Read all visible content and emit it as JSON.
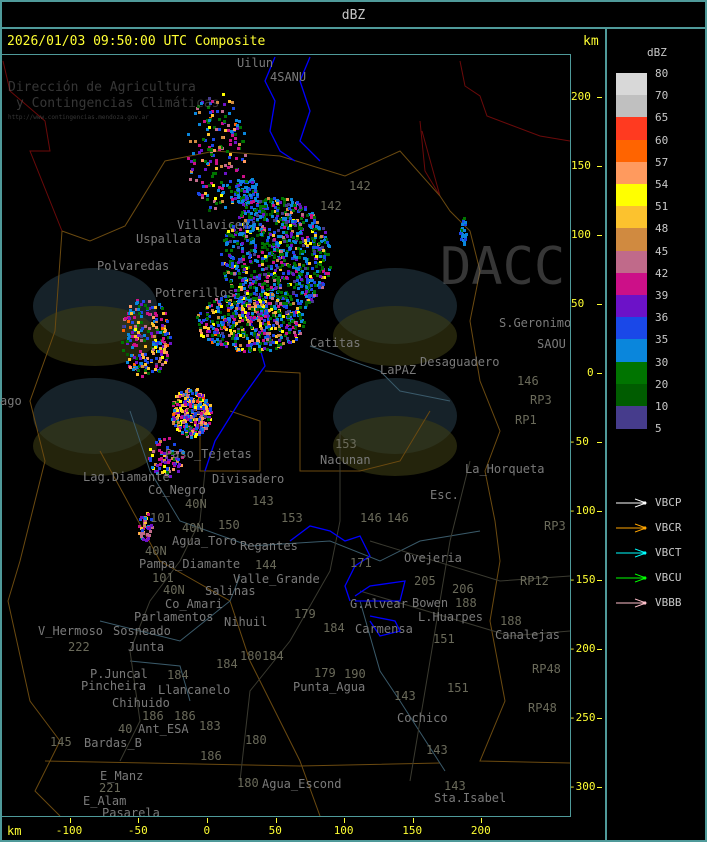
{
  "header": {
    "title": "dBZ"
  },
  "main": {
    "timestamp": "2026/01/03 09:50:00 UTC Composite",
    "unit_top": "km",
    "unit_bottom": "km",
    "x_ticks": [
      -100,
      -50,
      0,
      50,
      100,
      150,
      200
    ],
    "y_ticks": [
      200,
      150,
      100,
      50,
      0,
      -50,
      -100,
      -150,
      -200,
      -250,
      -300
    ]
  },
  "map": {
    "places": [
      "Uilun",
      "4SANU",
      "Villavicen",
      "Uspallata",
      "Polvaredas",
      "Potrerillos",
      "Catitas",
      "LaPAZ",
      "Desaguadero",
      "S.Geronimo",
      "SAOU",
      "ago",
      "Lag.Diamante",
      "Co_Negro",
      "Paso_Tejetas",
      "Divisadero",
      "Nacunan",
      "La_Horqueta",
      "Esc.",
      "Agua_Toro",
      "Regantes",
      "Pampa_Diamante",
      "Valle_Grande",
      "Salinas",
      "Co_Amari",
      "Parlamentos",
      "Sosneado",
      "Nihuil",
      "V_Hermoso",
      "Junta",
      "P.Juncal",
      "Pincheira",
      "Llancanelo",
      "Chihuido",
      "Ant_ESA",
      "Bardas_B",
      "E_Manz",
      "E_Alam",
      "Pasarela",
      "Agua_Escond",
      "Punta_Agua",
      "Carmensa",
      "G.Alvear",
      "Bowen",
      "L.Huarpes",
      "Ovejeria",
      "Canalejas",
      "Cochico",
      "Sta.Isabel"
    ],
    "routes": [
      "142",
      "142",
      "153",
      "153",
      "143",
      "150",
      "101",
      "101",
      "40N",
      "40N",
      "40N",
      "40N",
      "146",
      "146",
      "146",
      "171",
      "205",
      "206",
      "188",
      "188",
      "151",
      "151",
      "179",
      "179",
      "184",
      "184",
      "184",
      "184",
      "180",
      "180",
      "180",
      "183",
      "186",
      "186",
      "186",
      "190",
      "145",
      "222",
      "221",
      "143",
      "143",
      "143",
      "RP3",
      "RP3",
      "RP1",
      "RP12",
      "RP48",
      "RP48",
      "40",
      "144"
    ],
    "watermark": {
      "logo_text": "DACC",
      "line1": "Dirección de Agricultura",
      "line2": "y Contingencias Climáticas",
      "url": "http://www.contingencias.mendoza.gov.ar"
    }
  },
  "legend": {
    "title": "dBZ",
    "scale": [
      {
        "label": "80",
        "color": "#d8d8d8"
      },
      {
        "label": "70",
        "color": "#c0c0c0"
      },
      {
        "label": "65",
        "color": "#ff3a20"
      },
      {
        "label": "60",
        "color": "#ff6400"
      },
      {
        "label": "57",
        "color": "#ff9a5e"
      },
      {
        "label": "54",
        "color": "#ffff00"
      },
      {
        "label": "51",
        "color": "#fcc22e"
      },
      {
        "label": "48",
        "color": "#d08a40"
      },
      {
        "label": "45",
        "color": "#c06a8a"
      },
      {
        "label": "42",
        "color": "#cc1088"
      },
      {
        "label": "39",
        "color": "#6c12c8"
      },
      {
        "label": "36",
        "color": "#1a48e8"
      },
      {
        "label": "35",
        "color": "#0a86dc"
      },
      {
        "label": "30",
        "color": "#007400"
      },
      {
        "label": "20",
        "color": "#005c00"
      },
      {
        "label": "10",
        "color": "#463c8c"
      }
    ],
    "bottom_label": "5",
    "radars": [
      {
        "name": "VBCP",
        "color": "#ffffff"
      },
      {
        "name": "VBCR",
        "color": "#ffa500"
      },
      {
        "name": "VBCT",
        "color": "#00ffff"
      },
      {
        "name": "VBCU",
        "color": "#00ff00"
      },
      {
        "name": "VBBB",
        "color": "#ffc0cb"
      }
    ]
  }
}
